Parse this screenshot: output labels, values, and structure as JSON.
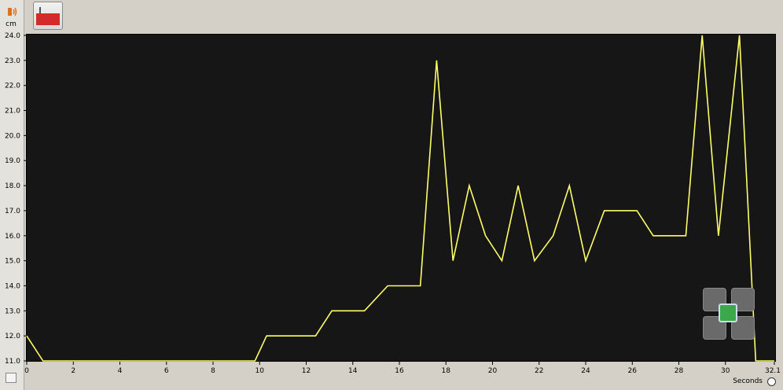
{
  "ui": {
    "unit": "cm",
    "x_axis_label": "Seconds",
    "icons": [
      "sound-sensor-icon",
      "graph-tool-icon",
      "clock-icon",
      "play-icon"
    ]
  },
  "chart_data": {
    "type": "line",
    "xlim": [
      0,
      32.1
    ],
    "ylim": [
      11.0,
      24.0
    ],
    "x_ticks": [
      "0",
      "2",
      "4",
      "6",
      "8",
      "10",
      "12",
      "14",
      "16",
      "18",
      "20",
      "22",
      "24",
      "26",
      "28",
      "30",
      "32.1"
    ],
    "y_ticks": [
      "11.0",
      "12.0",
      "13.0",
      "14.0",
      "15.0",
      "16.0",
      "17.0",
      "18.0",
      "19.0",
      "20.0",
      "21.0",
      "22.0",
      "23.0",
      "24.0"
    ],
    "xlabel": "Seconds",
    "ylabel": "cm",
    "line_color": "#ffff66",
    "series": [
      {
        "points": [
          [
            0.0,
            12.0
          ],
          [
            0.7,
            11.0
          ],
          [
            9.8,
            11.0
          ],
          [
            10.3,
            12.0
          ],
          [
            12.4,
            12.0
          ],
          [
            13.1,
            13.0
          ],
          [
            14.5,
            13.0
          ],
          [
            15.5,
            14.0
          ],
          [
            16.9,
            14.0
          ],
          [
            17.6,
            23.0
          ],
          [
            18.3,
            15.0
          ],
          [
            19.0,
            18.0
          ],
          [
            19.7,
            16.0
          ],
          [
            20.4,
            15.0
          ],
          [
            21.1,
            18.0
          ],
          [
            21.8,
            15.0
          ],
          [
            22.6,
            16.0
          ],
          [
            23.3,
            18.0
          ],
          [
            24.0,
            15.0
          ],
          [
            24.8,
            17.0
          ],
          [
            26.2,
            17.0
          ],
          [
            26.9,
            16.0
          ],
          [
            28.3,
            16.0
          ],
          [
            29.0,
            24.0
          ],
          [
            29.7,
            16.0
          ],
          [
            30.6,
            24.0
          ],
          [
            31.3,
            11.0
          ],
          [
            32.1,
            11.0
          ]
        ]
      }
    ]
  }
}
